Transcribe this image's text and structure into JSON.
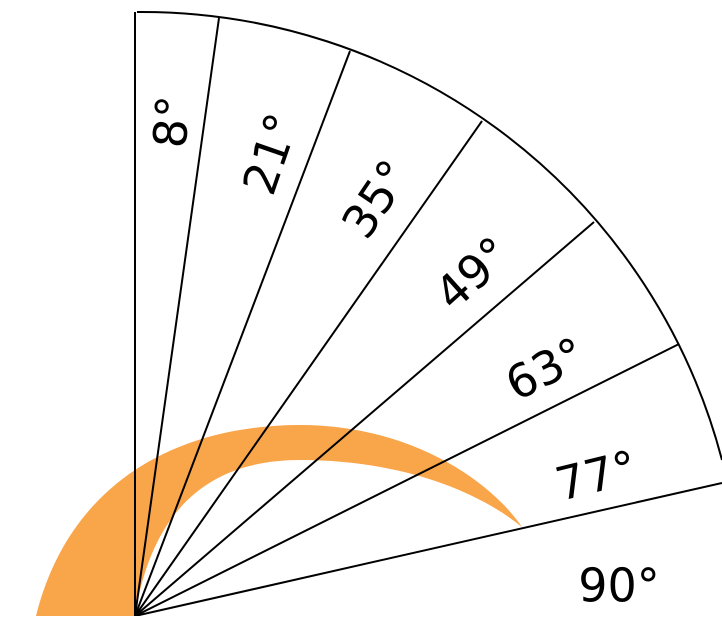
{
  "diagram": {
    "type": "angle-fan",
    "colors": {
      "line": "#000000",
      "arc_fill": "#f9a54a",
      "background": "#ffffff"
    },
    "sectors": [
      {
        "label": "8°"
      },
      {
        "label": "21°"
      },
      {
        "label": "35°"
      },
      {
        "label": "49°"
      },
      {
        "label": "63°"
      },
      {
        "label": "77°"
      },
      {
        "label": "90°"
      }
    ]
  }
}
